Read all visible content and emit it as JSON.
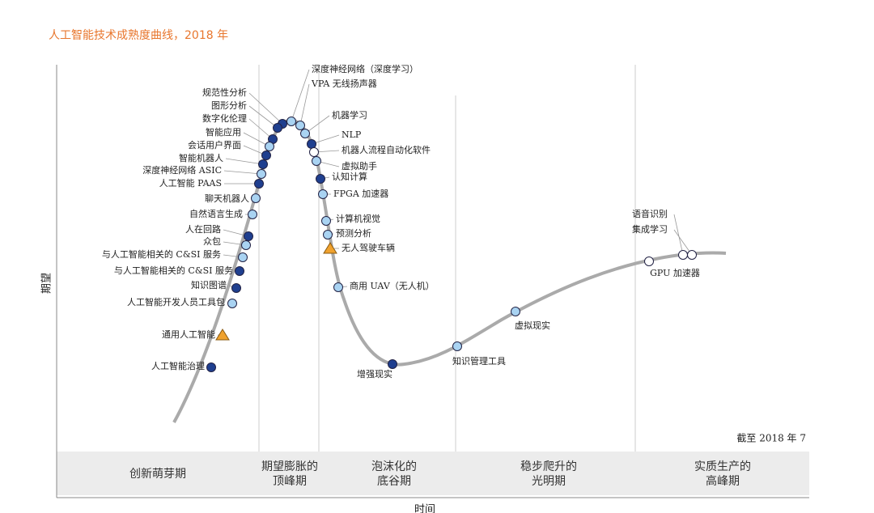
{
  "header": {
    "title": "人工智能技术成熟度曲线，2018 年"
  },
  "axes": {
    "y_label": "期望",
    "x_label": "时间"
  },
  "note": "截至 2018 年 7",
  "phases": [
    {
      "lines": [
        "创新萌芽期"
      ]
    },
    {
      "lines": [
        "期望膨胀的",
        "顶峰期"
      ]
    },
    {
      "lines": [
        "泡沫化的",
        "底谷期"
      ]
    },
    {
      "lines": [
        "稳步爬升的",
        "光明期"
      ]
    },
    {
      "lines": [
        "实质生产的",
        "高峰期"
      ]
    }
  ],
  "nodes": [
    {
      "label": "规范性分析"
    },
    {
      "label": "图形分析"
    },
    {
      "label": "数字化伦理"
    },
    {
      "label": "智能应用"
    },
    {
      "label": "会话用户界面"
    },
    {
      "label": "智能机器人"
    },
    {
      "label": "深度神经网络 ASIC"
    },
    {
      "label": "人工智能 PAAS"
    },
    {
      "label": "聊天机器人"
    },
    {
      "label": "自然语言生成"
    },
    {
      "label": "人在回路"
    },
    {
      "label": "众包"
    },
    {
      "label": "与人工智能相关的 C&SI 服务"
    },
    {
      "label": "与人工智能相关的 C&SI 服务"
    },
    {
      "label": "知识图谱"
    },
    {
      "label": "人工智能开发人员工具包"
    },
    {
      "label": "通用人工智能"
    },
    {
      "label": "人工智能治理"
    },
    {
      "label": "深度神经网络（深度学习）"
    },
    {
      "label": "VPA 无线扬声器"
    },
    {
      "label": "机器学习"
    },
    {
      "label": "NLP"
    },
    {
      "label": "机器人流程自动化软件"
    },
    {
      "label": "虚拟助手"
    },
    {
      "label": "认知计算"
    },
    {
      "label": "FPGA 加速器"
    },
    {
      "label": "计算机视觉"
    },
    {
      "label": "预测分析"
    },
    {
      "label": "无人驾驶车辆"
    },
    {
      "label": "商用 UAV（无人机）"
    },
    {
      "label": "增强现实"
    },
    {
      "label": "知识管理工具"
    },
    {
      "label": "虚拟现实"
    },
    {
      "label": "GPU 加速器"
    },
    {
      "label": "语音识别"
    },
    {
      "label": "集成学习"
    }
  ]
}
